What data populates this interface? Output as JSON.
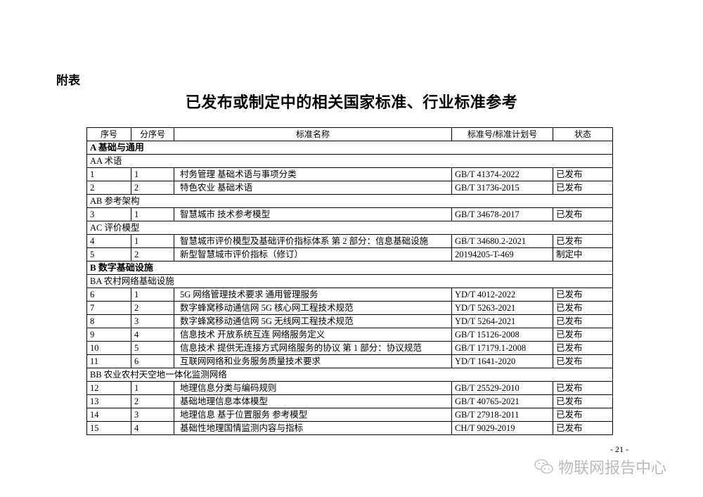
{
  "appendix_label": "附表",
  "title": "已发布或制定中的相关国家标准、行业标准参考",
  "headers": [
    "序号",
    "分序号",
    "标准名称",
    "标准号/标准计划号",
    "状态"
  ],
  "rows": [
    {
      "type": "category",
      "text": "A 基础与通用"
    },
    {
      "type": "subcategory",
      "text": "AA 术语"
    },
    {
      "type": "item",
      "cells": [
        "1",
        "1",
        "村务管理 基础术语与事项分类",
        "GB/T 41374-2022",
        "已发布"
      ]
    },
    {
      "type": "item",
      "cells": [
        "2",
        "2",
        "特色农业 基础术语",
        "GB/T 31736-2015",
        "已发布"
      ]
    },
    {
      "type": "subcategory",
      "text": "AB 参考架构"
    },
    {
      "type": "item",
      "cells": [
        "3",
        "1",
        "智慧城市 技术参考模型",
        "GB/T 34678-2017",
        "已发布"
      ]
    },
    {
      "type": "subcategory",
      "text": "AC 评价模型"
    },
    {
      "type": "item",
      "cells": [
        "4",
        "1",
        "智慧城市评价模型及基础评价指标体系 第 2 部分：信息基础设施",
        "GB/T 34680.2-2021",
        "已发布"
      ]
    },
    {
      "type": "item",
      "cells": [
        "5",
        "2",
        "新型智慧城市评价指标（修订）",
        "20194205-T-469",
        "制定中"
      ]
    },
    {
      "type": "category",
      "text": "B 数字基础设施"
    },
    {
      "type": "subcategory",
      "text": "BA 农村网络基础设施"
    },
    {
      "type": "item",
      "cells": [
        "6",
        "1",
        "5G 网络管理技术要求 通用管理服务",
        "YD/T 4012-2022",
        "已发布"
      ]
    },
    {
      "type": "item",
      "cells": [
        "7",
        "2",
        "数字蜂窝移动通信网 5G 核心网工程技术规范",
        "YD/T 5263-2021",
        "已发布"
      ]
    },
    {
      "type": "item",
      "cells": [
        "8",
        "3",
        "数字蜂窝移动通信网 5G 无线网工程技术规范",
        "YD/T 5264-2021",
        "已发布"
      ]
    },
    {
      "type": "item",
      "cells": [
        "9",
        "4",
        "信息技术 开放系统互连 网络服务定义",
        "GB/T 15126-2008",
        "已发布"
      ]
    },
    {
      "type": "item",
      "cells": [
        "10",
        "5",
        "信息技术 提供无连接方式网络服务的协议 第 1 部分：协议规范",
        "GB/T 17179.1-2008",
        "已发布"
      ]
    },
    {
      "type": "item",
      "cells": [
        "11",
        "6",
        "互联网网络和业务服务质量技术要求",
        "YD/T 1641-2020",
        "已发布"
      ]
    },
    {
      "type": "subcategory",
      "text": "BB 农业农村天空地一体化监测网络"
    },
    {
      "type": "item",
      "cells": [
        "12",
        "1",
        "地理信息分类与编码规则",
        "GB/T 25529-2010",
        "已发布"
      ]
    },
    {
      "type": "item",
      "cells": [
        "13",
        "2",
        "基础地理信息本体模型",
        "GB/T 40765-2021",
        "已发布"
      ]
    },
    {
      "type": "item",
      "cells": [
        "14",
        "3",
        "地理信息 基于位置服务 参考模型",
        "GB/T 27918-2011",
        "已发布"
      ]
    },
    {
      "type": "item",
      "cells": [
        "15",
        "4",
        "基础性地理国情监测内容与指标",
        "CH/T 9029-2019",
        "已发布"
      ]
    }
  ],
  "page_number": "- 21 -",
  "watermark": {
    "icon": "wechat-icon",
    "text": "物联网报告中心"
  }
}
